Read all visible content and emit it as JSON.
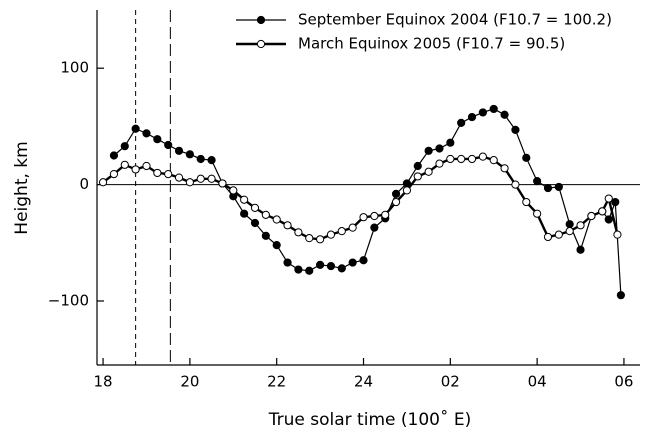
{
  "chart_data": {
    "type": "line",
    "xlabel": "True solar time (100˚ E)",
    "ylabel": "Height, km",
    "xlim": [
      17.86,
      30.37
    ],
    "ylim": [
      -155,
      150
    ],
    "xticks": [
      18,
      20,
      22,
      24,
      {
        "value": 26,
        "label": "02"
      },
      {
        "value": 28,
        "label": "04"
      },
      {
        "value": 30,
        "label": "06"
      }
    ],
    "yticks": [
      {
        "value": -100,
        "label": "−100"
      },
      0,
      100
    ],
    "zero_line": true,
    "vlines": [
      18.75,
      19.55
    ],
    "series": [
      {
        "name": "September Equinox 2004 (F10.7 = 100.2)",
        "color": "#000000",
        "marker": "filled",
        "line_width": 1.2,
        "x": [
          18.25,
          18.5,
          18.75,
          19,
          19.25,
          19.5,
          19.75,
          20,
          20.25,
          20.5,
          20.75,
          21,
          21.25,
          21.5,
          21.75,
          22,
          22.25,
          22.5,
          22.75,
          23,
          23.25,
          23.5,
          23.75,
          24,
          24.25,
          24.5,
          24.75,
          25,
          25.25,
          25.5,
          25.75,
          26,
          26.25,
          26.5,
          26.75,
          27,
          27.25,
          27.5,
          27.75,
          28,
          28.25,
          28.5,
          28.75,
          29,
          29.25,
          29.5,
          29.65,
          29.8,
          29.93
        ],
        "values": [
          25,
          33,
          48,
          44,
          39,
          34,
          29,
          26,
          22,
          21,
          1,
          -10,
          -25,
          -33,
          -44,
          -52,
          -67,
          -73,
          -74,
          -69,
          -70,
          -72,
          -67,
          -65,
          -37,
          -29,
          -8,
          1,
          16,
          29,
          31,
          36,
          53,
          58,
          62,
          65,
          60,
          47,
          23,
          3,
          -3,
          -2,
          -34,
          -56,
          -27,
          -23,
          -30,
          -15,
          -95
        ]
      },
      {
        "name": "March Equinox 2005 (F10.7 = 90.5)",
        "color": "#000000",
        "marker": "open",
        "line_width": 2.4,
        "x": [
          18,
          18.25,
          18.5,
          18.75,
          19,
          19.25,
          19.5,
          19.75,
          20,
          20.25,
          20.5,
          20.75,
          21,
          21.25,
          21.5,
          21.75,
          22,
          22.25,
          22.5,
          22.75,
          23,
          23.25,
          23.5,
          23.75,
          24,
          24.25,
          24.5,
          24.75,
          25,
          25.25,
          25.5,
          25.75,
          26,
          26.25,
          26.5,
          26.75,
          27,
          27.25,
          27.5,
          27.75,
          28,
          28.25,
          28.5,
          28.75,
          29,
          29.25,
          29.5,
          29.65,
          29.85
        ],
        "values": [
          2,
          9,
          17,
          13,
          16,
          10,
          9,
          6,
          2,
          5,
          5,
          1,
          -5,
          -13,
          -20,
          -26,
          -30,
          -35,
          -41,
          -46,
          -47,
          -43,
          -40,
          -37,
          -28,
          -27,
          -26,
          -15,
          -5,
          7,
          11,
          18,
          22,
          22,
          22,
          24,
          21,
          14,
          0,
          -15,
          -25,
          -45,
          -43,
          -40,
          -35,
          -27,
          -23,
          -12,
          -43
        ]
      }
    ]
  }
}
